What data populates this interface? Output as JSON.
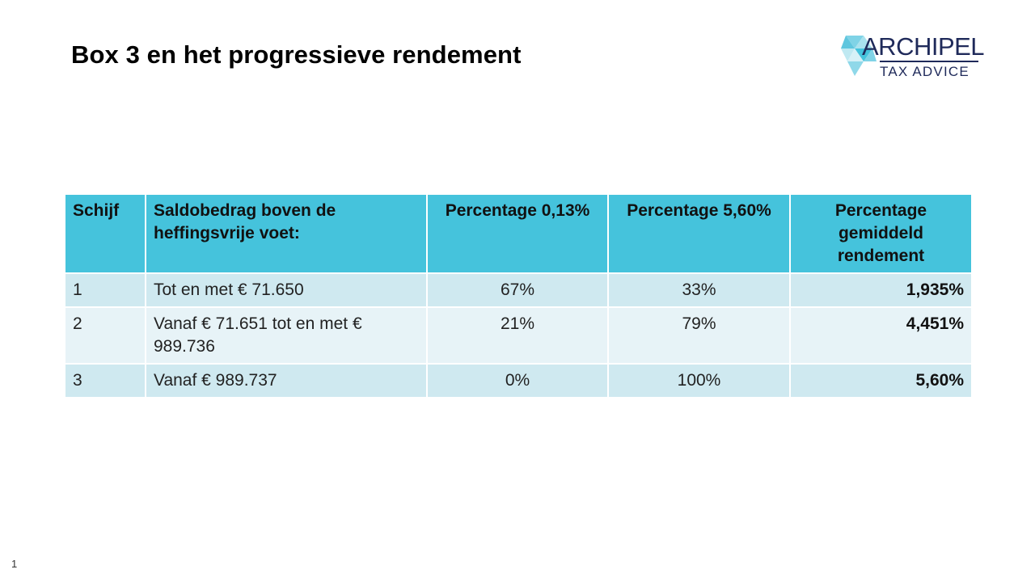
{
  "title": "Box 3 en het progressieve rendement",
  "logo": {
    "name": "ARCHIPEL",
    "tagline": "TAX ADVICE",
    "color": "#1f2a5a",
    "accent": "#45c3dc"
  },
  "table": {
    "headers": [
      "Schijf",
      "Saldobedrag boven de heffingsvrije voet:",
      "Percentage 0,13%",
      "Percentage 5,60%",
      "Percentage gemiddeld rendement"
    ],
    "rows": [
      [
        "1",
        "Tot en met € 71.650",
        "67%",
        "33%",
        "1,935%"
      ],
      [
        "2",
        "Vanaf € 71.651 tot en met € 989.736",
        "21%",
        "79%",
        "4,451%"
      ],
      [
        "3",
        "Vanaf € 989.737",
        "0%",
        "100%",
        "5,60%"
      ]
    ],
    "header_color": "#45c3dc",
    "row_color_a": "#cfe9f0",
    "row_color_b": "#e7f3f7"
  },
  "page_number": "1"
}
